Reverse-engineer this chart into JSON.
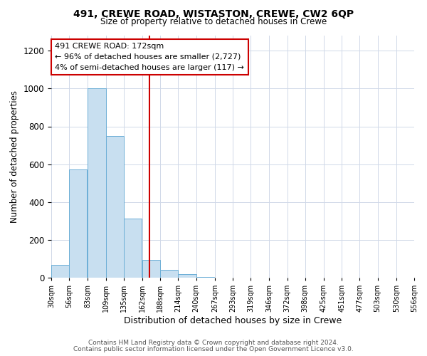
{
  "title": "491, CREWE ROAD, WISTASTON, CREWE, CW2 6QP",
  "subtitle": "Size of property relative to detached houses in Crewe",
  "xlabel": "Distribution of detached houses by size in Crewe",
  "ylabel": "Number of detached properties",
  "bin_edges": [
    30,
    56,
    83,
    109,
    135,
    162,
    188,
    214,
    240,
    267,
    293,
    319,
    346,
    372,
    398,
    425,
    451,
    477,
    503,
    530,
    556
  ],
  "bar_heights": [
    68,
    572,
    1003,
    748,
    314,
    95,
    43,
    18,
    5,
    0,
    0,
    0,
    0,
    0,
    0,
    0,
    0,
    0,
    0,
    0
  ],
  "bar_color": "#c8dff0",
  "bar_edgecolor": "#6baed6",
  "property_line_x": 172,
  "property_line_color": "#cc0000",
  "annotation_text_line1": "491 CREWE ROAD: 172sqm",
  "annotation_text_line2": "← 96% of detached houses are smaller (2,727)",
  "annotation_text_line3": "4% of semi-detached houses are larger (117) →",
  "annotation_box_color": "#ffffff",
  "annotation_box_edgecolor": "#cc0000",
  "ylim": [
    0,
    1280
  ],
  "yticks": [
    0,
    200,
    400,
    600,
    800,
    1000,
    1200
  ],
  "footer_line1": "Contains HM Land Registry data © Crown copyright and database right 2024.",
  "footer_line2": "Contains public sector information licensed under the Open Government Licence v3.0.",
  "background_color": "#ffffff",
  "grid_color": "#d0d8e8"
}
